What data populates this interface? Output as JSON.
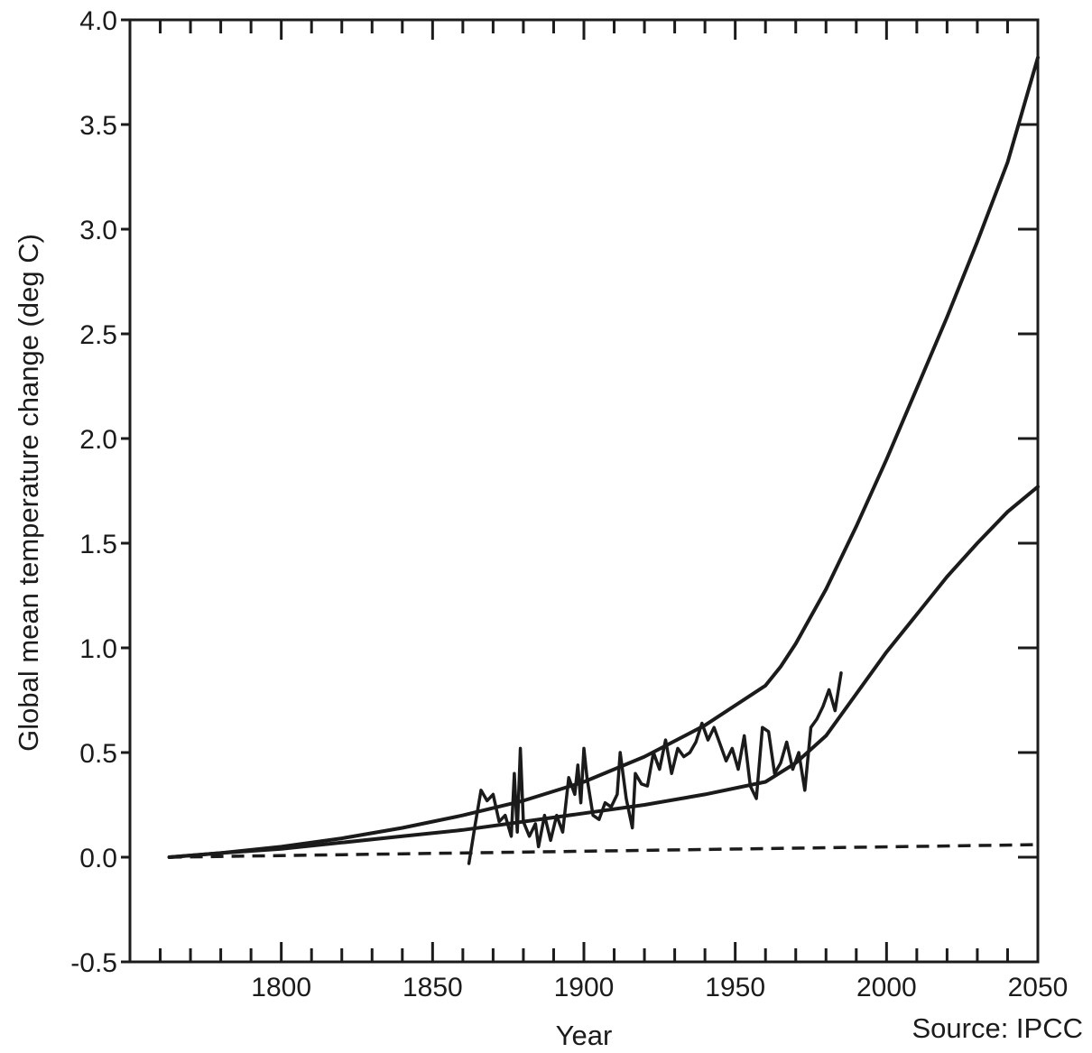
{
  "chart_data": {
    "type": "line",
    "title": "",
    "xlabel": "Year",
    "ylabel": "Global mean temperature change (deg C)",
    "source": "Source: IPCC",
    "xlim": [
      1750,
      2050
    ],
    "ylim": [
      -0.5,
      4.0
    ],
    "x_ticks": [
      1800,
      1850,
      1900,
      1950,
      2000,
      2050
    ],
    "x_tick_labels": [
      "1800",
      "1850",
      "1900",
      "1950",
      "2000",
      "2050"
    ],
    "y_ticks": [
      -0.5,
      0.0,
      0.5,
      1.0,
      1.5,
      2.0,
      2.5,
      3.0,
      3.5,
      4.0
    ],
    "y_tick_labels": [
      "-0.5",
      "0.0",
      "0.5",
      "1.0",
      "1.5",
      "2.0",
      "2.5",
      "3.0",
      "3.5",
      "4.0"
    ],
    "grid": false,
    "legend": "none",
    "series": [
      {
        "style": "solid",
        "x": [
          1763,
          1780,
          1800,
          1820,
          1840,
          1860,
          1880,
          1900,
          1920,
          1940,
          1960,
          1965,
          1970,
          1980,
          1990,
          2000,
          2010,
          2020,
          2030,
          2040,
          2050
        ],
        "y": [
          0.0,
          0.02,
          0.05,
          0.09,
          0.14,
          0.2,
          0.27,
          0.36,
          0.48,
          0.63,
          0.82,
          0.91,
          1.02,
          1.28,
          1.58,
          1.9,
          2.24,
          2.58,
          2.94,
          3.32,
          3.82
        ]
      },
      {
        "style": "solid",
        "x": [
          1763,
          1780,
          1800,
          1820,
          1840,
          1860,
          1880,
          1900,
          1920,
          1940,
          1960,
          1970,
          1980,
          1990,
          2000,
          2010,
          2020,
          2030,
          2040,
          2050
        ],
        "y": [
          0.0,
          0.02,
          0.04,
          0.07,
          0.1,
          0.13,
          0.17,
          0.21,
          0.25,
          0.3,
          0.36,
          0.45,
          0.58,
          0.78,
          0.98,
          1.16,
          1.34,
          1.5,
          1.65,
          1.77
        ]
      },
      {
        "style": "dashed",
        "x": [
          1763,
          2050
        ],
        "y": [
          0.0,
          0.06
        ]
      },
      {
        "style": "observed",
        "x": [
          1862,
          1864,
          1866,
          1868,
          1870,
          1872,
          1874,
          1876,
          1877,
          1878,
          1879,
          1880,
          1882,
          1884,
          1885,
          1887,
          1889,
          1891,
          1893,
          1895,
          1897,
          1898,
          1899,
          1900,
          1901,
          1903,
          1905,
          1907,
          1909,
          1911,
          1912,
          1914,
          1916,
          1917,
          1919,
          1921,
          1923,
          1925,
          1927,
          1929,
          1931,
          1933,
          1935,
          1937,
          1939,
          1941,
          1943,
          1945,
          1947,
          1949,
          1951,
          1953,
          1955,
          1957,
          1959,
          1961,
          1963,
          1965,
          1967,
          1969,
          1971,
          1973,
          1975,
          1977,
          1979,
          1981,
          1983,
          1985
        ],
        "y": [
          -0.03,
          0.15,
          0.32,
          0.27,
          0.3,
          0.17,
          0.2,
          0.1,
          0.4,
          0.12,
          0.52,
          0.17,
          0.1,
          0.16,
          0.05,
          0.2,
          0.08,
          0.2,
          0.12,
          0.38,
          0.3,
          0.44,
          0.26,
          0.52,
          0.38,
          0.2,
          0.18,
          0.26,
          0.24,
          0.3,
          0.5,
          0.28,
          0.14,
          0.4,
          0.35,
          0.34,
          0.5,
          0.42,
          0.56,
          0.4,
          0.52,
          0.48,
          0.5,
          0.55,
          0.64,
          0.56,
          0.62,
          0.54,
          0.46,
          0.52,
          0.42,
          0.58,
          0.34,
          0.28,
          0.62,
          0.6,
          0.4,
          0.45,
          0.55,
          0.42,
          0.5,
          0.32,
          0.62,
          0.66,
          0.72,
          0.8,
          0.7,
          0.88
        ]
      }
    ]
  }
}
